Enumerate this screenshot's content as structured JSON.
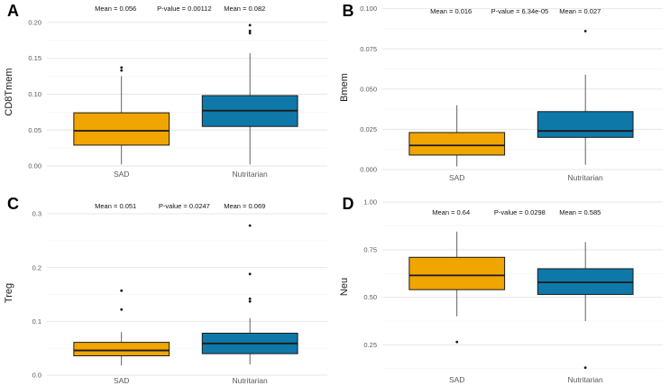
{
  "figure_kind": "boxplot-grid",
  "categories": [
    "SAD",
    "Nutritarian"
  ],
  "colors": {
    "sad_fill": "#F0A500",
    "nutritarian_fill": "#0E79A9",
    "box_stroke": "#1a1a1a"
  },
  "chart_data": [
    {
      "type": "box",
      "panel_label": "A",
      "ylabel": "CD8Tmem",
      "categories": [
        "SAD",
        "Nutritarian"
      ],
      "ylim": [
        0,
        0.206
      ],
      "yticks": [
        0,
        0.05,
        0.1,
        0.15,
        0.2
      ],
      "ytick_labels": [
        "0.00",
        "0.05",
        "0.10",
        "0.15",
        "0.20"
      ],
      "annotations": [
        "Mean = 0.056",
        "P-value = 0.00112",
        "Mean = 0.082"
      ],
      "grid": true,
      "series": [
        {
          "name": "SAD",
          "color": "#F0A500",
          "whisker_low": 0.002,
          "q1": 0.029,
          "median": 0.049,
          "q3": 0.074,
          "whisker_high": 0.125,
          "outliers": [
            0.133,
            0.137
          ]
        },
        {
          "name": "Nutritarian",
          "color": "#0E79A9",
          "whisker_low": 0.002,
          "q1": 0.055,
          "median": 0.077,
          "q3": 0.098,
          "whisker_high": 0.157,
          "outliers": [
            0.185,
            0.188,
            0.196
          ]
        }
      ]
    },
    {
      "type": "box",
      "panel_label": "B",
      "ylabel": "Bmem",
      "categories": [
        "SAD",
        "Nutritarian"
      ],
      "ylim": [
        0,
        0.102
      ],
      "yticks": [
        0,
        0.025,
        0.05,
        0.075,
        0.1
      ],
      "ytick_labels": [
        "0.000",
        "0.025",
        "0.050",
        "0.075",
        "0.100"
      ],
      "annotations": [
        "Mean = 0.016",
        "P-value = 6.34e-05",
        "Mean = 0.027"
      ],
      "grid": true,
      "series": [
        {
          "name": "SAD",
          "color": "#F0A500",
          "whisker_low": 0.002,
          "q1": 0.009,
          "median": 0.015,
          "q3": 0.023,
          "whisker_high": 0.04,
          "outliers": []
        },
        {
          "name": "Nutritarian",
          "color": "#0E79A9",
          "whisker_low": 0.003,
          "q1": 0.02,
          "median": 0.024,
          "q3": 0.036,
          "whisker_high": 0.059,
          "outliers": [
            0.086
          ]
        }
      ]
    },
    {
      "type": "box",
      "panel_label": "C",
      "ylabel": "Treg",
      "categories": [
        "SAD",
        "Nutritarian"
      ],
      "ylim": [
        0,
        0.305
      ],
      "yticks": [
        0,
        0.1,
        0.2,
        0.3
      ],
      "ytick_labels": [
        "0.0",
        "0.1",
        "0.2",
        "0.3"
      ],
      "annotations": [
        "Mean = 0.051",
        "P-value = 0.0247",
        "Mean = 0.069"
      ],
      "grid": true,
      "series": [
        {
          "name": "SAD",
          "color": "#F0A500",
          "whisker_low": 0.018,
          "q1": 0.036,
          "median": 0.046,
          "q3": 0.061,
          "whisker_high": 0.08,
          "outliers": [
            0.122,
            0.157
          ]
        },
        {
          "name": "Nutritarian",
          "color": "#0E79A9",
          "whisker_low": 0.02,
          "q1": 0.04,
          "median": 0.059,
          "q3": 0.078,
          "whisker_high": 0.106,
          "outliers": [
            0.137,
            0.142,
            0.188,
            0.278
          ]
        }
      ]
    },
    {
      "type": "box",
      "panel_label": "D",
      "ylabel": "Neu",
      "categories": [
        "SAD",
        "Nutritarian"
      ],
      "ylim": [
        0.1,
        1.01
      ],
      "yticks": [
        0.25,
        0.5,
        0.75,
        1.0
      ],
      "ytick_labels": [
        "0.25",
        "0.50",
        "0.75",
        "1.00"
      ],
      "annotations": [
        "Mean = 0.64",
        "P-value = 0.0298",
        "Mean = 0.585"
      ],
      "grid": true,
      "series": [
        {
          "name": "SAD",
          "color": "#F0A500",
          "whisker_low": 0.4,
          "q1": 0.54,
          "median": 0.615,
          "q3": 0.71,
          "whisker_high": 0.845,
          "outliers": [
            0.265
          ]
        },
        {
          "name": "Nutritarian",
          "color": "#0E79A9",
          "whisker_low": 0.375,
          "q1": 0.515,
          "median": 0.578,
          "q3": 0.65,
          "whisker_high": 0.79,
          "outliers": [
            0.13
          ]
        }
      ]
    }
  ]
}
